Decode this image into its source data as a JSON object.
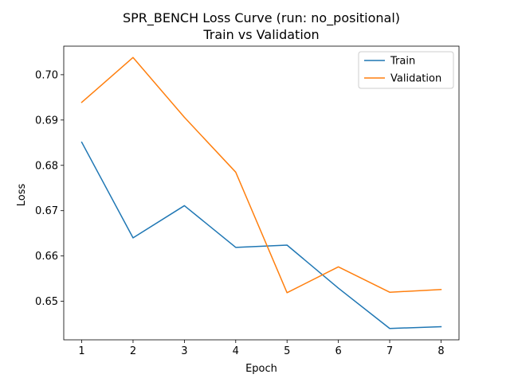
{
  "chart_data": {
    "type": "line",
    "title_line1": "SPR_BENCH Loss Curve (run: no_positional)",
    "title_line2": "Train vs Validation",
    "xlabel": "Epoch",
    "ylabel": "Loss",
    "x": [
      1,
      2,
      3,
      4,
      5,
      6,
      7,
      8
    ],
    "xticks": [
      "1",
      "2",
      "3",
      "4",
      "5",
      "6",
      "7",
      "8"
    ],
    "yticks": [
      "0.65",
      "0.66",
      "0.67",
      "0.68",
      "0.69",
      "0.70"
    ],
    "xlim": [
      0.65,
      8.35
    ],
    "ylim": [
      0.6415,
      0.7063
    ],
    "grid": false,
    "legend_position": "upper-right",
    "series": [
      {
        "name": "Train",
        "color": "#1f77b4",
        "values": [
          0.6851,
          0.664,
          0.6711,
          0.6619,
          0.6624,
          0.6529,
          0.644,
          0.6444
        ]
      },
      {
        "name": "Validation",
        "color": "#ff7f0e",
        "values": [
          0.6939,
          0.7038,
          0.6906,
          0.6785,
          0.6519,
          0.6576,
          0.652,
          0.6526
        ]
      }
    ]
  }
}
